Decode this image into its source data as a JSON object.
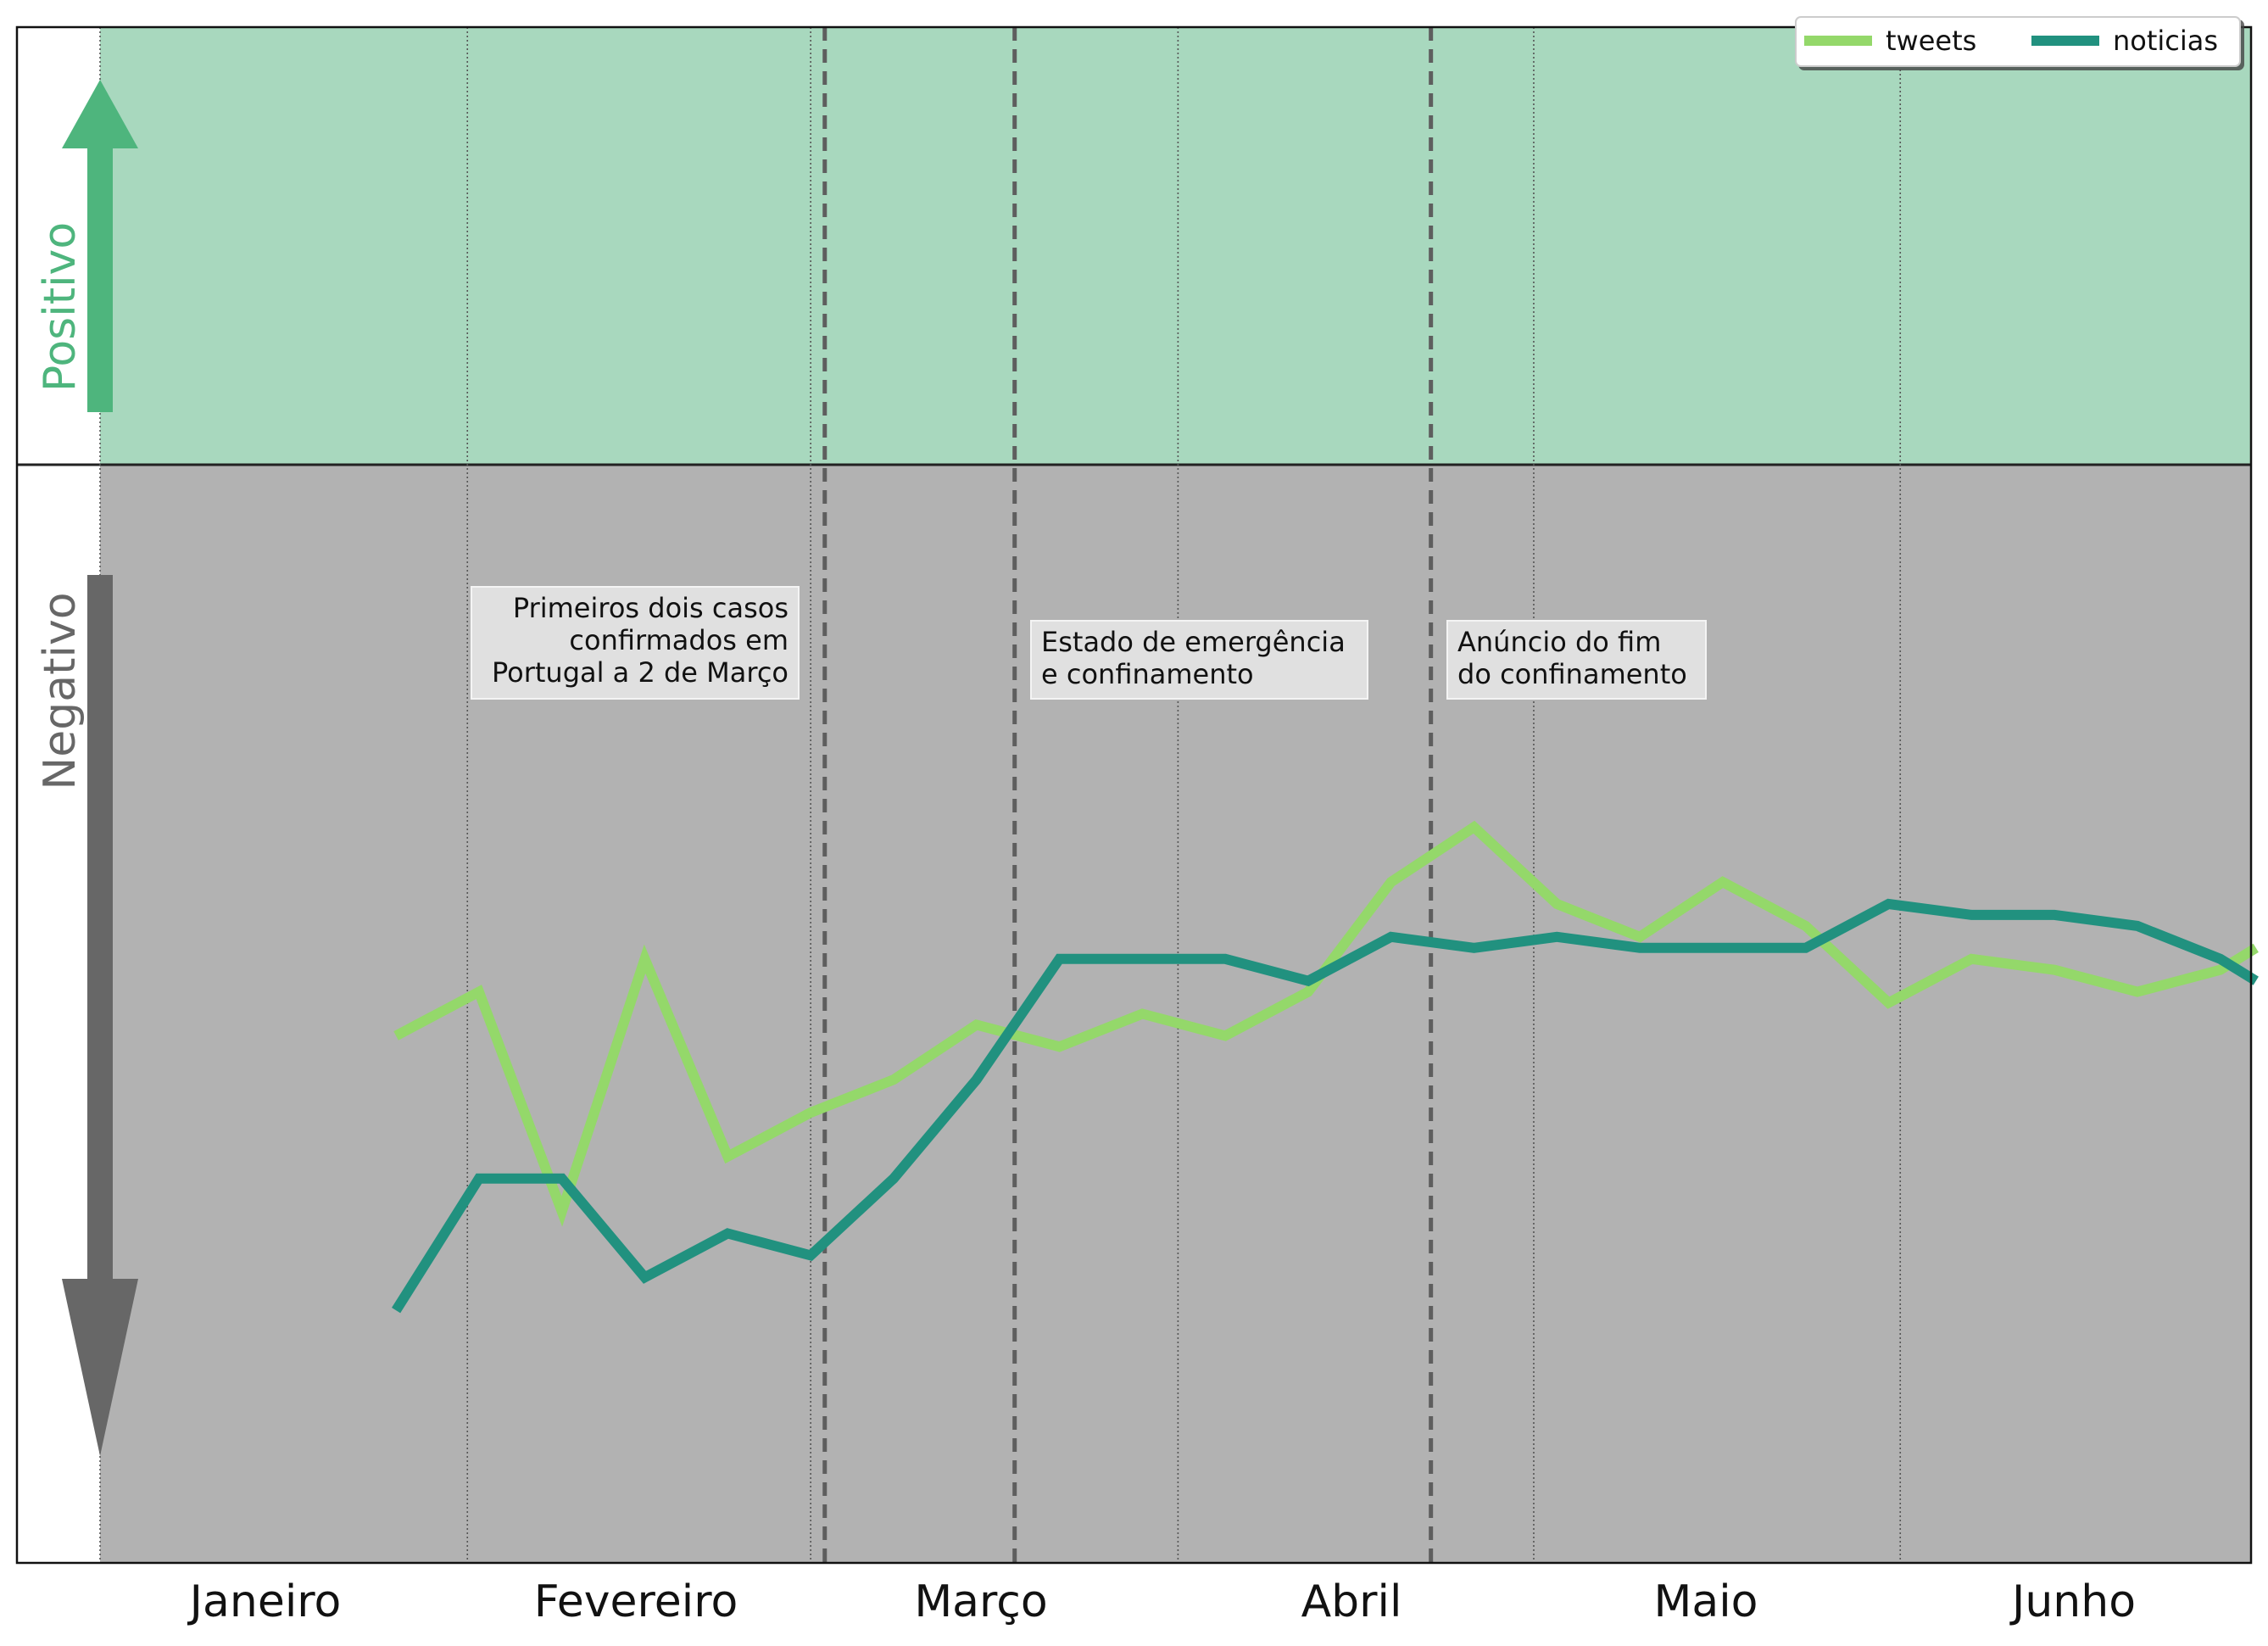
{
  "chart_data": {
    "type": "line",
    "categories": [
      "Janeiro",
      "Fevereiro",
      "Março",
      "Abril",
      "Maio",
      "Junho"
    ],
    "xlim_weeks": [
      0,
      26
    ],
    "ylim": [
      -1,
      1
    ],
    "grid": "vertical dotted lines at month boundaries",
    "legend": {
      "position": "top-right",
      "entries": [
        "tweets",
        "noticias"
      ]
    },
    "regions": [
      {
        "label": "Positivo",
        "color": "#a8d8be",
        "arrow_color": "#4eb57d",
        "range": [
          0,
          1
        ]
      },
      {
        "label": "Negativo",
        "color": "#b2b2b2",
        "arrow_color": "#676767",
        "range": [
          -1,
          0
        ]
      }
    ],
    "events": [
      {
        "label": "Primeiros dois casos confirmados em Portugal a 2 de Março",
        "lines": [
          "Primeiros dois casos",
          "confirmados em",
          "Portugal a 2 de Março"
        ],
        "x": 8.74,
        "align": "right"
      },
      {
        "label": "Estado de emergência e confinamento",
        "lines": [
          "Estado de emergência",
          "e confinamento"
        ],
        "x": 11.03,
        "align": "left"
      },
      {
        "label": "Anúncio do fim do confinamento",
        "lines": [
          "Anúncio do fim",
          "do confinamento"
        ],
        "x": 16.05,
        "align": "left"
      }
    ],
    "series": [
      {
        "name": "tweets",
        "color": "#94d86a",
        "x": [
          3.57,
          4.57,
          5.57,
          6.57,
          7.57,
          8.57,
          9.57,
          10.57,
          11.57,
          12.57,
          13.57,
          14.57,
          15.57,
          16.57,
          17.57,
          18.57,
          19.57,
          20.57,
          21.57,
          22.57,
          23.57,
          24.57,
          25.57,
          26.0
        ],
        "values": [
          -0.52,
          -0.48,
          -0.68,
          -0.45,
          -0.63,
          -0.59,
          -0.56,
          -0.51,
          -0.53,
          -0.5,
          -0.52,
          -0.48,
          -0.38,
          -0.33,
          -0.4,
          -0.43,
          -0.38,
          -0.42,
          -0.49,
          -0.45,
          -0.46,
          -0.48,
          -0.46,
          -0.44
        ]
      },
      {
        "name": "noticias",
        "color": "#21917f",
        "x": [
          3.57,
          4.57,
          5.57,
          6.57,
          7.57,
          8.57,
          9.57,
          10.57,
          11.57,
          12.57,
          13.57,
          14.57,
          15.57,
          16.57,
          17.57,
          18.57,
          19.57,
          20.57,
          21.57,
          22.57,
          23.57,
          24.57,
          25.57,
          26.0
        ],
        "values": [
          -0.77,
          -0.65,
          -0.65,
          -0.74,
          -0.7,
          -0.72,
          -0.65,
          -0.56,
          -0.45,
          -0.45,
          -0.45,
          -0.47,
          -0.43,
          -0.44,
          -0.43,
          -0.44,
          -0.44,
          -0.44,
          -0.4,
          -0.41,
          -0.41,
          -0.42,
          -0.45,
          -0.47
        ]
      }
    ]
  }
}
